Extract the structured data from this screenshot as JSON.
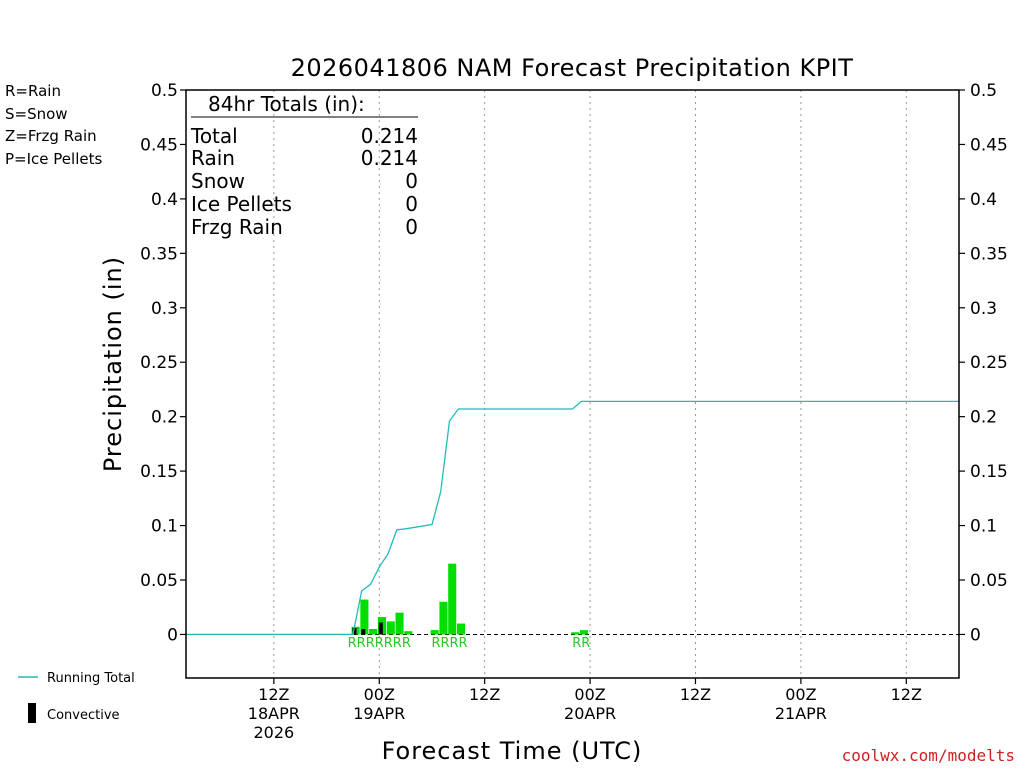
{
  "chart_data": {
    "type": "bar",
    "title": "2026041806 NAM Forecast Precipitation KPIT",
    "xlabel": "Forecast Time (UTC)",
    "ylabel": "Precipitation (in)",
    "ylim": [
      -0.04,
      0.5
    ],
    "yticks": [
      0,
      0.05,
      0.1,
      0.15,
      0.2,
      0.25,
      0.3,
      0.35,
      0.4,
      0.45,
      0.5
    ],
    "ytick_labels": [
      "0",
      "0.05",
      "0.1",
      "0.15",
      "0.2",
      "0.25",
      "0.3",
      "0.35",
      "0.4",
      "0.45",
      "0.5"
    ],
    "x_unit": "forecast hour",
    "xlim": [
      -4,
      84
    ],
    "xticks": [
      {
        "hour": 6,
        "label": "12Z",
        "date": "18APR",
        "year": "2026"
      },
      {
        "hour": 18,
        "label": "00Z",
        "date": "19APR",
        "year": ""
      },
      {
        "hour": 30,
        "label": "12Z",
        "date": "",
        "year": ""
      },
      {
        "hour": 42,
        "label": "00Z",
        "date": "20APR",
        "year": ""
      },
      {
        "hour": 54,
        "label": "12Z",
        "date": "",
        "year": ""
      },
      {
        "hour": 66,
        "label": "00Z",
        "date": "21APR",
        "year": ""
      },
      {
        "hour": 78,
        "label": "12Z",
        "date": "",
        "year": ""
      }
    ],
    "series": [
      {
        "name": "Rain",
        "color": "#00dd00",
        "hours": [
          15,
          16,
          17,
          18,
          19,
          20,
          21,
          24,
          25,
          26,
          27,
          40,
          41
        ],
        "values": [
          0.007,
          0.032,
          0.005,
          0.016,
          0.012,
          0.02,
          0.003,
          0.004,
          0.03,
          0.065,
          0.01,
          0.002,
          0.004
        ]
      },
      {
        "name": "Convective",
        "color": "#000000",
        "hours": [
          15,
          16,
          18
        ],
        "values": [
          0.006,
          0.005,
          0.011
        ]
      },
      {
        "name": "Running Total",
        "color": "#22bbbb",
        "hours": [
          -4,
          15,
          16,
          17,
          18,
          19,
          20,
          21,
          24,
          25,
          26,
          27,
          40,
          41,
          84
        ],
        "values": [
          0,
          0,
          0.04,
          0.046,
          0.062,
          0.074,
          0.096,
          0.097,
          0.101,
          0.131,
          0.196,
          0.207,
          0.207,
          0.214,
          0.214
        ]
      }
    ],
    "ptype_labels": [
      {
        "hour": 18,
        "text": "RRRRRRR"
      },
      {
        "hour": 26,
        "text": "RRRR"
      },
      {
        "hour": 41,
        "text": "RR"
      }
    ]
  },
  "totals_box": {
    "heading": "84hr Totals (in):",
    "rows": [
      {
        "label": "Total",
        "value": "0.214"
      },
      {
        "label": "Rain",
        "value": "0.214"
      },
      {
        "label": "Snow",
        "value": "0"
      },
      {
        "label": "Ice Pellets",
        "value": "0"
      },
      {
        "label": "Frzg Rain",
        "value": "0"
      }
    ]
  },
  "ptype_legend": [
    {
      "text": "R=Rain",
      "color": "#22cc22"
    },
    {
      "text": "S=Snow",
      "color": "#3355ee"
    },
    {
      "text": "Z=Frzg Rain",
      "color": "#ee8833"
    },
    {
      "text": "P=Ice Pellets",
      "color": "#ee2299"
    }
  ],
  "bottom_legend": {
    "running_total": "Running Total",
    "convective": "Convective"
  },
  "credit": "coolwx.com/modelts"
}
